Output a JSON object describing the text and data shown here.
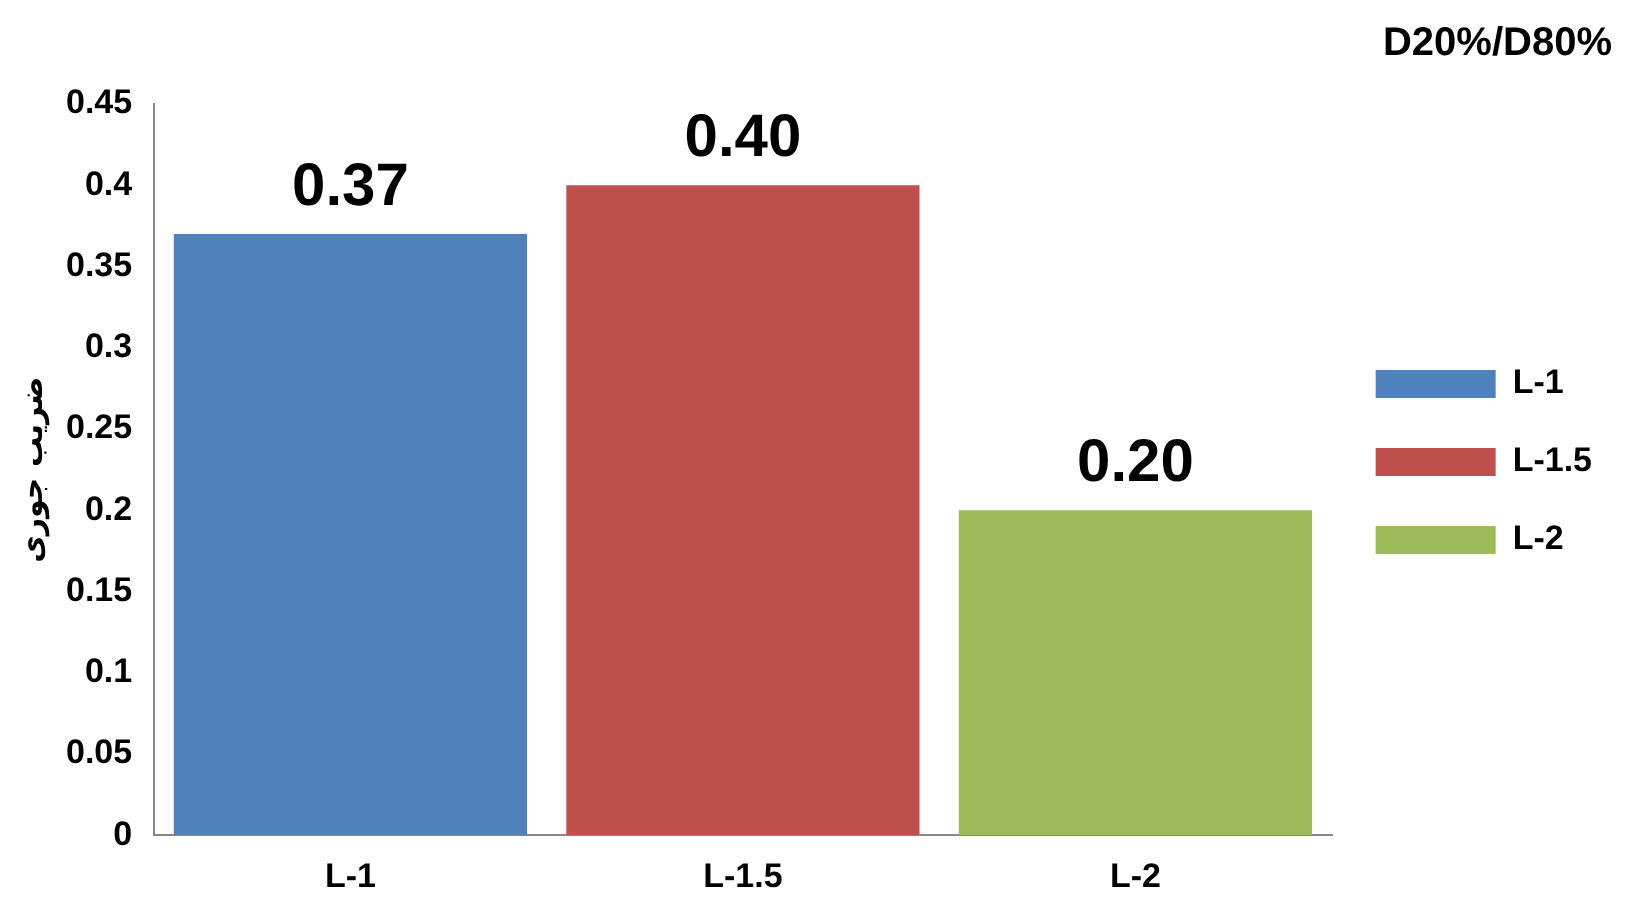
{
  "chart_data": {
    "type": "bar",
    "title": "D20%/D80%",
    "ylabel": "ضریب جوری",
    "categories": [
      "L-1",
      "L-1.5",
      "L-2"
    ],
    "series": [
      {
        "name": "L-1",
        "color": "#4f81bd",
        "values": [
          0.37,
          null,
          null
        ],
        "value_labels": [
          "0.37",
          null,
          null
        ]
      },
      {
        "name": "L-1.5",
        "color": "#c0504d",
        "values": [
          null,
          0.4,
          null
        ],
        "value_labels": [
          null,
          "0.40",
          null
        ]
      },
      {
        "name": "L-2",
        "color": "#9bbb59",
        "values": [
          null,
          null,
          0.2
        ],
        "value_labels": [
          null,
          null,
          "0.20"
        ]
      }
    ],
    "ylim": [
      0,
      0.45
    ],
    "yticks": [
      0,
      0.05,
      0.1,
      0.15,
      0.2,
      0.25,
      0.3,
      0.35,
      0.4,
      0.45
    ],
    "grid": false,
    "legend": "right"
  }
}
